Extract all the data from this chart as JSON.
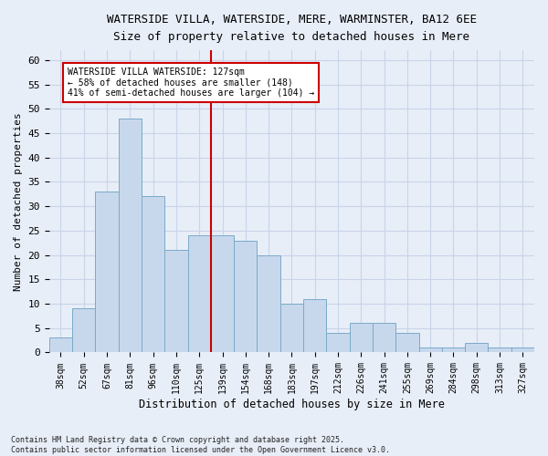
{
  "title_line1": "WATERSIDE VILLA, WATERSIDE, MERE, WARMINSTER, BA12 6EE",
  "title_line2": "Size of property relative to detached houses in Mere",
  "xlabel": "Distribution of detached houses by size in Mere",
  "ylabel": "Number of detached properties",
  "categories": [
    "38sqm",
    "52sqm",
    "67sqm",
    "81sqm",
    "96sqm",
    "110sqm",
    "125sqm",
    "139sqm",
    "154sqm",
    "168sqm",
    "183sqm",
    "197sqm",
    "212sqm",
    "226sqm",
    "241sqm",
    "255sqm",
    "269sqm",
    "284sqm",
    "298sqm",
    "313sqm",
    "327sqm"
  ],
  "values": [
    3,
    9,
    33,
    48,
    32,
    21,
    24,
    24,
    23,
    20,
    10,
    11,
    4,
    6,
    6,
    4,
    1,
    1,
    2,
    1,
    1
  ],
  "bar_color": "#c8d8ec",
  "bar_edge_color": "#7aaac8",
  "red_line_x": 6.5,
  "red_line_label": "WATERSIDE VILLA WATERSIDE: 127sqm",
  "annotation_line2": "← 58% of detached houses are smaller (148)",
  "annotation_line3": "41% of semi-detached houses are larger (104) →",
  "annotation_box_color": "#ffffff",
  "annotation_box_edge": "#cc0000",
  "red_line_color": "#cc0000",
  "ylim": [
    0,
    62
  ],
  "yticks": [
    0,
    5,
    10,
    15,
    20,
    25,
    30,
    35,
    40,
    45,
    50,
    55,
    60
  ],
  "grid_color": "#c8d4e8",
  "bg_color": "#e8eef8",
  "footer": "Contains HM Land Registry data © Crown copyright and database right 2025.\nContains public sector information licensed under the Open Government Licence v3.0."
}
